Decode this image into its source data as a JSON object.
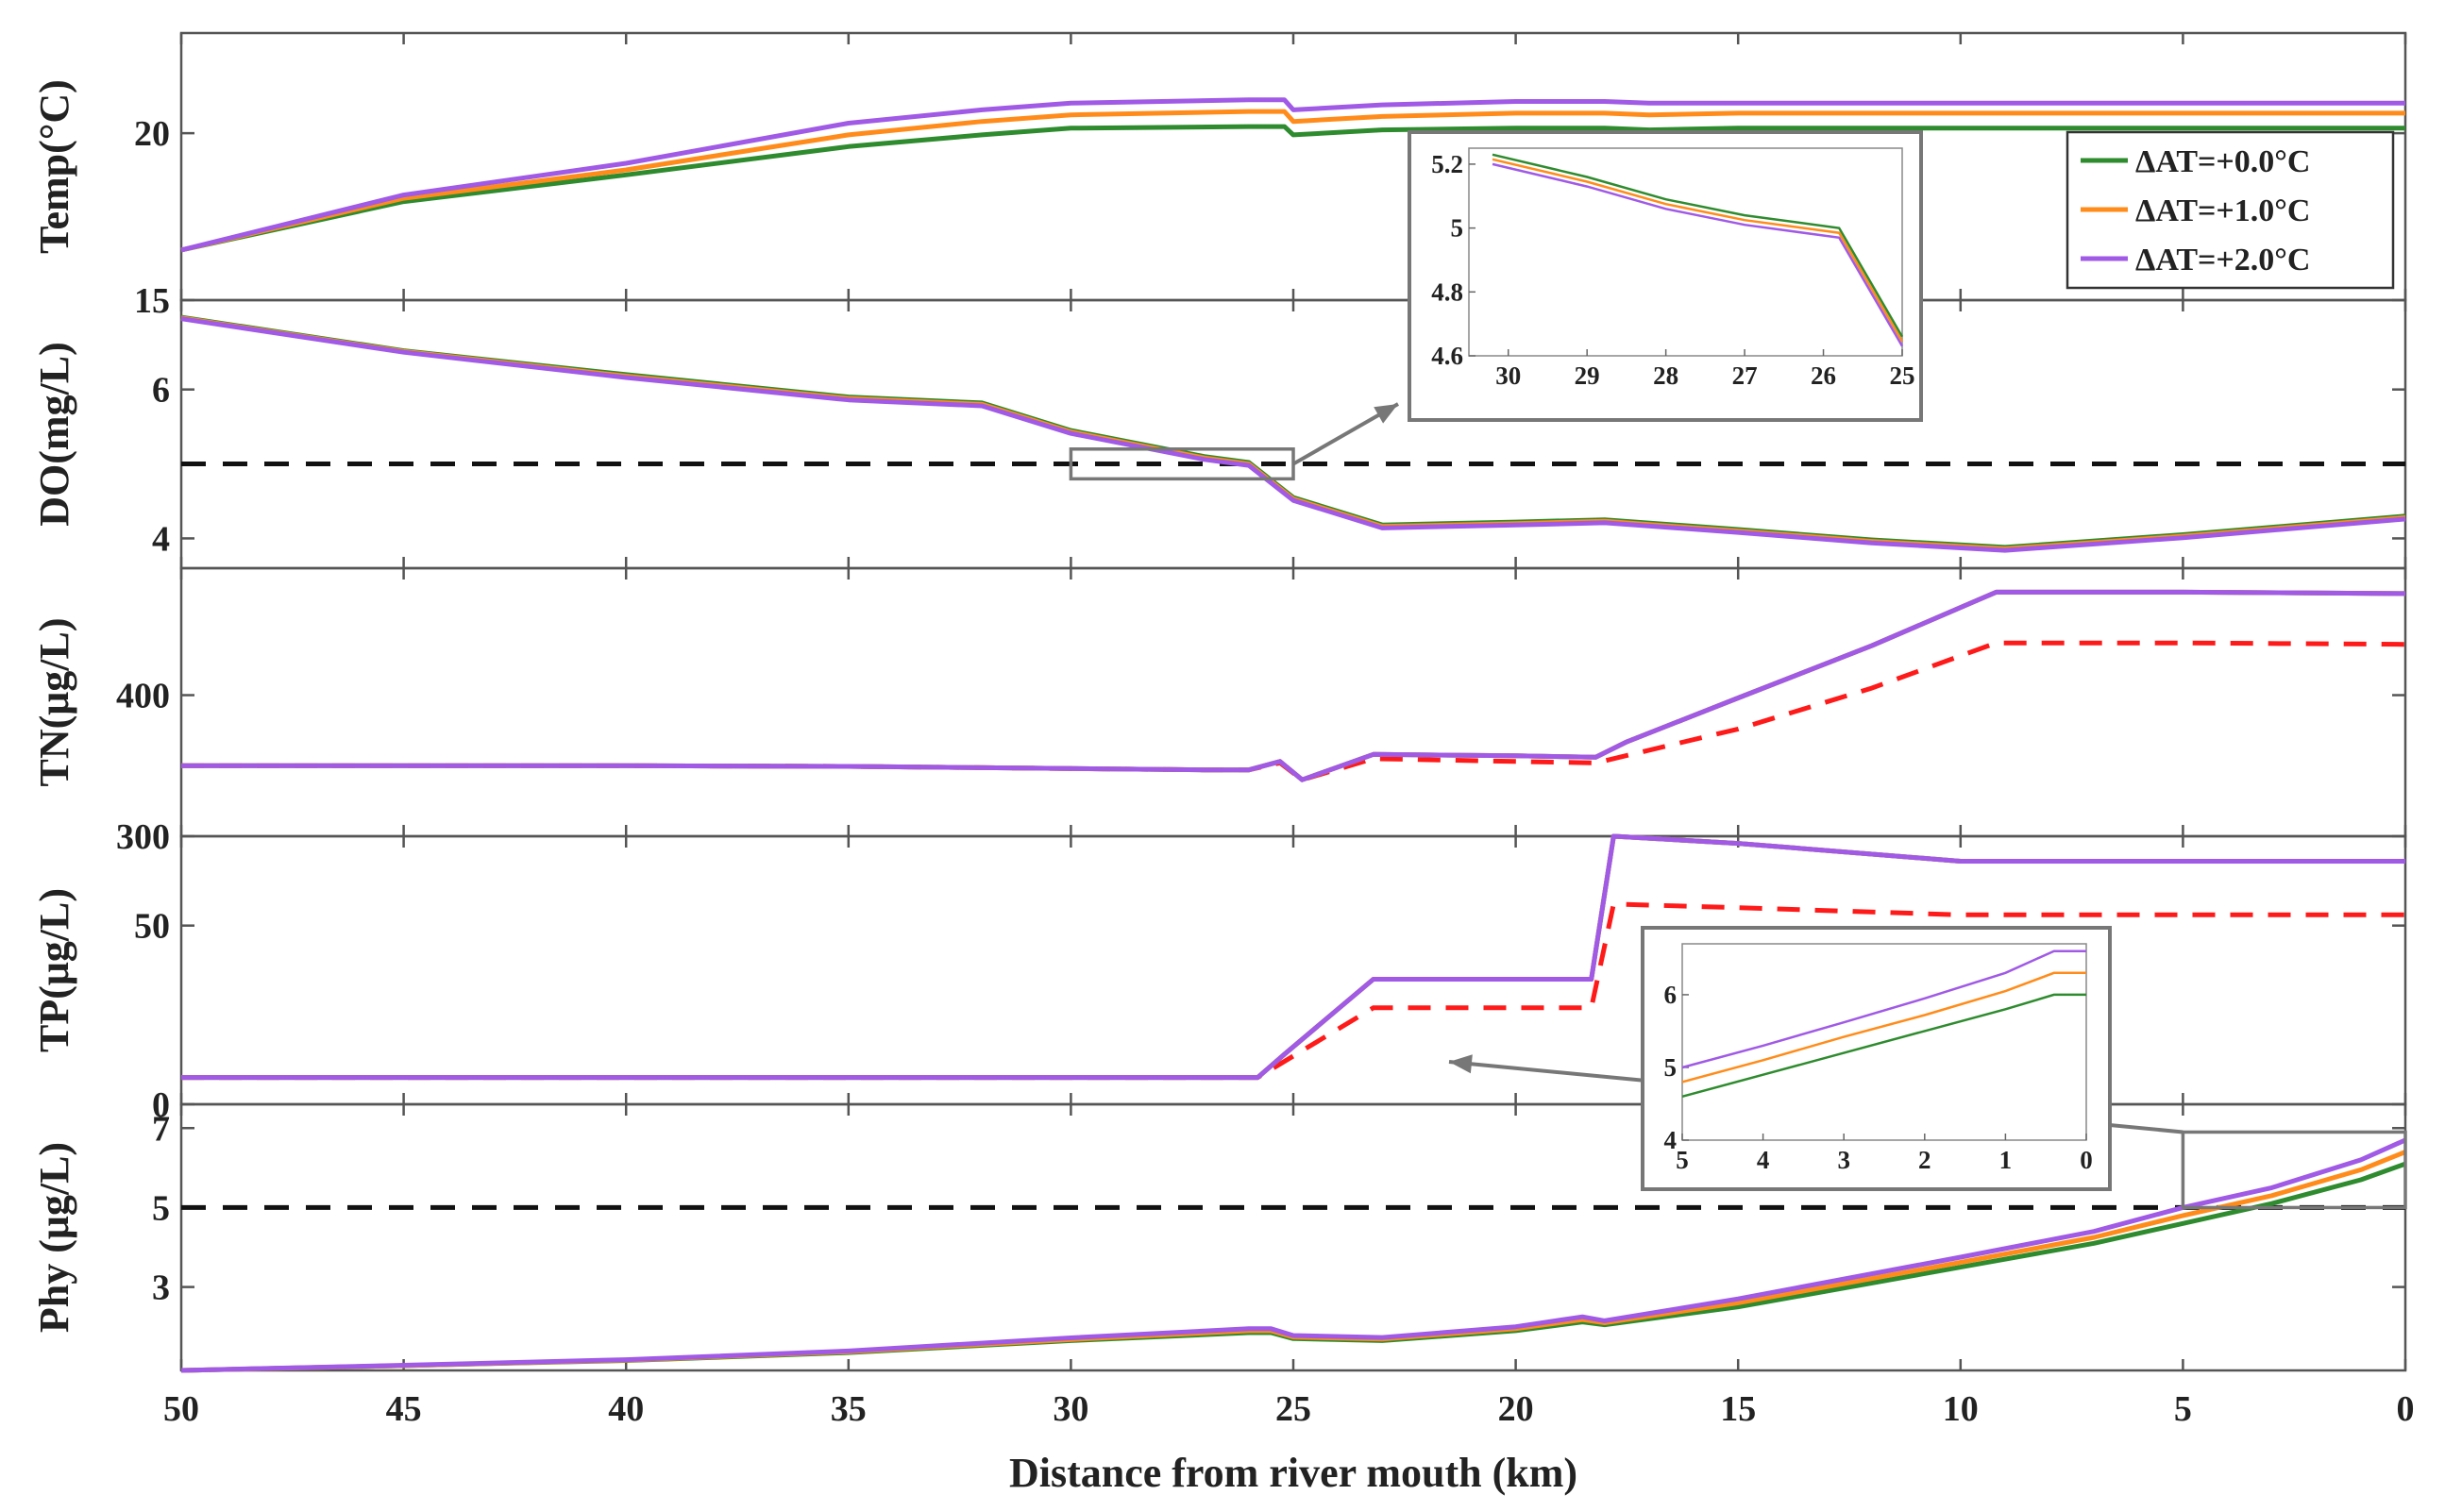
{
  "chart_data": {
    "type": "line",
    "title": "",
    "xlabel": "Distance from river mouth (km)",
    "x_ticks": [
      "50",
      "45",
      "40",
      "35",
      "30",
      "25",
      "20",
      "15",
      "10",
      "5",
      "0"
    ],
    "xlim": [
      50,
      0
    ],
    "legend": {
      "placement": "top-right",
      "entries": [
        {
          "label": "ΔAT=+0.0°C",
          "color": "#2e8b2e"
        },
        {
          "label": "ΔAT=+1.0°C",
          "color": "#ff8c1a"
        },
        {
          "label": "ΔAT=+2.0°C",
          "color": "#a05ae6"
        }
      ]
    },
    "colors": {
      "s0": "#2e8b2e",
      "s1": "#ff8c1a",
      "s2": "#a05ae6",
      "ref": "#ff1a1a",
      "threshold": "#111111",
      "axis": "#555555"
    },
    "panels": [
      {
        "id": "temp",
        "ylabel": "Temp(°C)",
        "ylim": [
          15,
          23
        ],
        "y_ticks": [
          "15",
          "20"
        ],
        "y_tick_values": [
          15,
          20
        ],
        "series": [
          {
            "name": "ΔAT=+0.0°C",
            "color_key": "s0",
            "x": [
              50,
              45,
              40,
              35,
              32,
              30,
              26,
              25.2,
              25,
              23,
              20,
              18,
              17,
              15,
              10,
              5,
              0
            ],
            "y": [
              16.5,
              17.95,
              18.75,
              19.6,
              19.95,
              20.15,
              20.2,
              20.2,
              19.95,
              20.1,
              20.15,
              20.15,
              20.1,
              20.15,
              20.15,
              20.15,
              20.15
            ]
          },
          {
            "name": "ΔAT=+1.0°C",
            "color_key": "s1",
            "x": [
              50,
              45,
              40,
              35,
              32,
              30,
              26,
              25.2,
              25,
              23,
              20,
              18,
              17,
              15,
              10,
              5,
              0
            ],
            "y": [
              16.5,
              18.05,
              18.9,
              19.95,
              20.35,
              20.55,
              20.65,
              20.65,
              20.35,
              20.5,
              20.6,
              20.6,
              20.55,
              20.6,
              20.6,
              20.6,
              20.6
            ]
          },
          {
            "name": "ΔAT=+2.0°C",
            "color_key": "s2",
            "x": [
              50,
              45,
              40,
              35,
              32,
              30,
              26,
              25.2,
              25,
              23,
              20,
              18,
              17,
              15,
              10,
              5,
              0
            ],
            "y": [
              16.5,
              18.15,
              19.1,
              20.3,
              20.7,
              20.9,
              21.0,
              21.0,
              20.7,
              20.85,
              20.95,
              20.95,
              20.9,
              20.9,
              20.9,
              20.9,
              20.9
            ]
          }
        ]
      },
      {
        "id": "do",
        "ylabel": "DO(mg/L)",
        "ylim": [
          3.6,
          7.2
        ],
        "y_ticks": [
          "4",
          "6"
        ],
        "y_tick_values": [
          4,
          6
        ],
        "threshold": 5,
        "series": [
          {
            "name": "ΔAT=+0.0°C",
            "color_key": "s0",
            "x": [
              50,
              45,
              40,
              35,
              32,
              30,
              27,
              26,
              25,
              23,
              20,
              18,
              15,
              12,
              9,
              5,
              0
            ],
            "y": [
              6.97,
              6.52,
              6.2,
              5.9,
              5.82,
              5.45,
              5.1,
              5.02,
              4.55,
              4.18,
              4.22,
              4.25,
              4.12,
              3.98,
              3.88,
              4.05,
              4.3
            ]
          },
          {
            "name": "ΔAT=+1.0°C",
            "color_key": "s1",
            "x": [
              50,
              45,
              40,
              35,
              32,
              30,
              27,
              26,
              25,
              23,
              20,
              18,
              15,
              12,
              9,
              5,
              0
            ],
            "y": [
              6.96,
              6.51,
              6.18,
              5.88,
              5.8,
              5.43,
              5.08,
              5.0,
              4.53,
              4.16,
              4.2,
              4.23,
              4.1,
              3.96,
              3.86,
              4.03,
              4.28
            ]
          },
          {
            "name": "ΔAT=+2.0°C",
            "color_key": "s2",
            "x": [
              50,
              45,
              40,
              35,
              32,
              30,
              27,
              26,
              25,
              23,
              20,
              18,
              15,
              12,
              9,
              5,
              0
            ],
            "y": [
              6.95,
              6.5,
              6.16,
              5.86,
              5.78,
              5.41,
              5.06,
              4.98,
              4.51,
              4.14,
              4.18,
              4.21,
              4.08,
              3.94,
              3.84,
              4.01,
              4.26
            ]
          }
        ]
      },
      {
        "id": "tn",
        "ylabel": "TN(μg/L)",
        "ylim": [
          300,
          490
        ],
        "y_ticks": [
          "300",
          "400"
        ],
        "y_tick_values": [
          300,
          400
        ],
        "series": [
          {
            "name": "ΔAT=+0.0°C",
            "color_key": "s0",
            "x": [
              50,
              45,
              40,
              35,
              30,
              27,
              26,
              25.3,
              24.8,
              23.2,
              20,
              18.2,
              17.5,
              15,
              12,
              9.2,
              5,
              0
            ],
            "y": [
              350,
              350,
              350,
              349.5,
              348,
              347,
              347,
              353,
              340,
              358,
              357,
              356,
              367,
              398,
              435,
              473,
              473,
              472
            ]
          },
          {
            "name": "ΔAT=+1.0°C",
            "color_key": "s1",
            "x": [
              50,
              45,
              40,
              35,
              30,
              27,
              26,
              25.3,
              24.8,
              23.2,
              20,
              18.2,
              17.5,
              15,
              12,
              9.2,
              5,
              0
            ],
            "y": [
              350,
              350,
              350,
              349.5,
              348,
              347,
              347,
              353,
              340,
              358,
              357,
              356,
              367,
              398,
              435,
              473,
              473,
              472
            ]
          },
          {
            "name": "ΔAT=+2.0°C",
            "color_key": "s2",
            "x": [
              50,
              45,
              40,
              35,
              30,
              27,
              26,
              25.3,
              24.8,
              23.2,
              20,
              18.2,
              17.5,
              15,
              12,
              9.2,
              5,
              0
            ],
            "y": [
              350,
              350,
              350,
              349.5,
              348,
              347,
              347,
              353,
              340,
              358,
              357,
              356,
              367,
              398,
              435,
              473,
              473,
              472
            ]
          }
        ],
        "reference": {
          "x": [
            50,
            45,
            40,
            35,
            30,
            27,
            26,
            25.3,
            24.8,
            23.2,
            20,
            18.2,
            15,
            12,
            9.2,
            5,
            0
          ],
          "y": [
            350,
            350,
            350,
            349.5,
            348,
            347,
            347,
            352,
            340,
            355,
            353,
            352,
            376,
            405,
            437,
            437,
            436
          ]
        }
      },
      {
        "id": "tp",
        "ylabel": "TP(μg/L)",
        "ylim": [
          0,
          75
        ],
        "y_ticks": [
          "0",
          "50"
        ],
        "y_tick_values": [
          0,
          50
        ],
        "series": [
          {
            "name": "ΔAT=+0.0°C",
            "color_key": "s0",
            "x": [
              50,
              45,
              40,
              35,
              30,
              27,
              25.8,
              25.2,
              23.2,
              20,
              18.3,
              17.8,
              15,
              10,
              5,
              0
            ],
            "y": [
              7.5,
              7.5,
              7.5,
              7.5,
              7.5,
              7.5,
              7.5,
              14,
              35,
              35,
              35,
              75,
              73,
              68,
              68,
              68
            ]
          },
          {
            "name": "ΔAT=+1.0°C",
            "color_key": "s1",
            "x": [
              50,
              45,
              40,
              35,
              30,
              27,
              25.8,
              25.2,
              23.2,
              20,
              18.3,
              17.8,
              15,
              10,
              5,
              0
            ],
            "y": [
              7.5,
              7.5,
              7.5,
              7.5,
              7.5,
              7.5,
              7.5,
              14,
              35,
              35,
              35,
              75,
              73,
              68,
              68,
              68
            ]
          },
          {
            "name": "ΔAT=+2.0°C",
            "color_key": "s2",
            "x": [
              50,
              45,
              40,
              35,
              30,
              27,
              25.8,
              25.2,
              23.2,
              20,
              18.3,
              17.8,
              15,
              10,
              5,
              0
            ],
            "y": [
              7.5,
              7.5,
              7.5,
              7.5,
              7.5,
              7.5,
              7.5,
              14,
              35,
              35,
              35,
              75,
              73,
              68,
              68,
              68
            ]
          }
        ],
        "reference": {
          "x": [
            50,
            45,
            40,
            35,
            30,
            27,
            25.8,
            23.2,
            20,
            18.3,
            17.8,
            15,
            10,
            5,
            0
          ],
          "y": [
            7.5,
            7.5,
            7.5,
            7.5,
            7.5,
            7.5,
            7.5,
            27,
            27,
            27,
            56,
            55,
            53,
            53,
            53
          ]
        }
      },
      {
        "id": "phy",
        "ylabel": "Phy (μg/L)",
        "ylim": [
          0.9,
          7.6
        ],
        "y_ticks": [
          "3",
          "5",
          "7"
        ],
        "y_tick_values": [
          3,
          5,
          7
        ],
        "threshold": 5,
        "series": [
          {
            "name": "ΔAT=+0.0°C",
            "color_key": "s0",
            "x": [
              50,
              45,
              40,
              35,
              30,
              26,
              25.5,
              25,
              23,
              20,
              18.5,
              18,
              15,
              10,
              7,
              5,
              3,
              1,
              0
            ],
            "y": [
              0.9,
              1.02,
              1.15,
              1.35,
              1.65,
              1.85,
              1.85,
              1.7,
              1.65,
              1.9,
              2.12,
              2.05,
              2.5,
              3.5,
              4.1,
              4.6,
              5.1,
              5.7,
              6.1
            ]
          },
          {
            "name": "ΔAT=+1.0°C",
            "color_key": "s1",
            "x": [
              50,
              45,
              40,
              35,
              30,
              26,
              25.5,
              25,
              23,
              20,
              18.5,
              18,
              15,
              10,
              7,
              5,
              3,
              1,
              0
            ],
            "y": [
              0.9,
              1.02,
              1.16,
              1.37,
              1.68,
              1.9,
              1.9,
              1.74,
              1.69,
              1.95,
              2.18,
              2.1,
              2.6,
              3.62,
              4.25,
              4.8,
              5.3,
              5.95,
              6.4
            ]
          },
          {
            "name": "ΔAT=+2.0°C",
            "color_key": "s2",
            "x": [
              50,
              45,
              40,
              35,
              30,
              26,
              25.5,
              25,
              23,
              20,
              18.5,
              18,
              15,
              10,
              7,
              5,
              3,
              1,
              0
            ],
            "y": [
              0.9,
              1.03,
              1.17,
              1.39,
              1.72,
              1.95,
              1.95,
              1.78,
              1.73,
              2.0,
              2.25,
              2.15,
              2.7,
              3.75,
              4.4,
              5.0,
              5.5,
              6.2,
              6.7
            ]
          }
        ]
      }
    ],
    "insets": [
      {
        "id": "do-zoom",
        "source_panel": "do",
        "source_xlim": [
          30,
          25
        ],
        "source_ylim": [
          4.8,
          5.2
        ],
        "xlim": [
          30.5,
          25
        ],
        "ylim": [
          4.6,
          5.25
        ],
        "x_ticks": [
          "30",
          "29",
          "28",
          "27",
          "26",
          "25"
        ],
        "x_tick_values": [
          30,
          29,
          28,
          27,
          26,
          25
        ],
        "y_ticks": [
          "4.6",
          "4.8",
          "5",
          "5.2"
        ],
        "y_tick_values": [
          4.6,
          4.8,
          5,
          5.2
        ],
        "series": [
          {
            "color_key": "s0",
            "x": [
              30.2,
              29,
              28,
              27,
              25.8,
              25
            ],
            "y": [
              5.23,
              5.16,
              5.09,
              5.04,
              5.0,
              4.66
            ]
          },
          {
            "color_key": "s1",
            "x": [
              30.2,
              29,
              28,
              27,
              25.8,
              25
            ],
            "y": [
              5.215,
              5.145,
              5.075,
              5.025,
              4.985,
              4.645
            ]
          },
          {
            "color_key": "s2",
            "x": [
              30.2,
              29,
              28,
              27,
              25.8,
              25
            ],
            "y": [
              5.2,
              5.13,
              5.06,
              5.01,
              4.97,
              4.63
            ]
          }
        ]
      },
      {
        "id": "phy-zoom",
        "source_panel": "phy",
        "source_xlim": [
          5,
          0
        ],
        "source_ylim": [
          5,
          6.9
        ],
        "xlim": [
          5,
          0
        ],
        "ylim": [
          4,
          6.7
        ],
        "x_ticks": [
          "5",
          "4",
          "3",
          "2",
          "1",
          "0"
        ],
        "x_tick_values": [
          5,
          4,
          3,
          2,
          1,
          0
        ],
        "y_ticks": [
          "4",
          "5",
          "6"
        ],
        "y_tick_values": [
          4,
          5,
          6
        ],
        "series": [
          {
            "color_key": "s0",
            "x": [
              5,
              4,
              3,
              2,
              1,
              0.4,
              0.2,
              0
            ],
            "y": [
              4.6,
              4.9,
              5.2,
              5.5,
              5.8,
              6.0,
              6.0,
              6.0
            ]
          },
          {
            "color_key": "s1",
            "x": [
              5,
              4,
              3,
              2,
              1,
              0.4,
              0.2,
              0
            ],
            "y": [
              4.8,
              5.1,
              5.42,
              5.72,
              6.05,
              6.3,
              6.3,
              6.3
            ]
          },
          {
            "color_key": "s2",
            "x": [
              5,
              4,
              3,
              2,
              1,
              0.4,
              0.2,
              0
            ],
            "y": [
              5.0,
              5.3,
              5.62,
              5.95,
              6.3,
              6.6,
              6.6,
              6.6
            ]
          }
        ]
      }
    ]
  }
}
